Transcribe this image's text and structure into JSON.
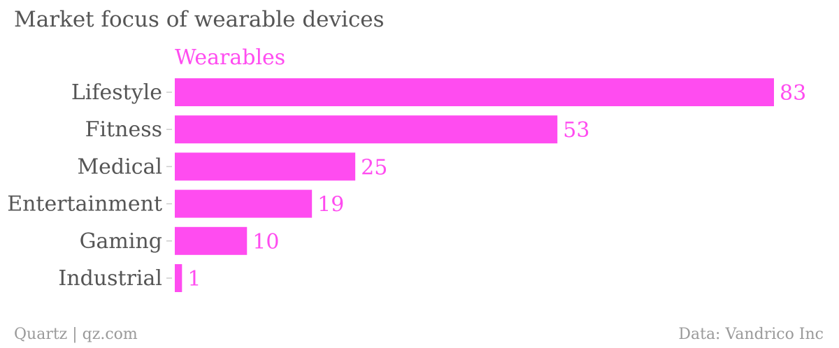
{
  "title": "Market focus of wearable devices",
  "footer": {
    "source": "Quartz | qz.com",
    "credit": "Data: Vandrico Inc"
  },
  "colors": {
    "bar": "#ff4cf0",
    "text": "#555555",
    "footer": "#9a9a9a"
  },
  "chart_data": {
    "type": "bar",
    "orientation": "horizontal",
    "categories": [
      "Lifestyle",
      "Fitness",
      "Medical",
      "Entertainment",
      "Gaming",
      "Industrial"
    ],
    "series": [
      {
        "name": "Wearables",
        "values": [
          83,
          53,
          25,
          19,
          10,
          1
        ]
      }
    ],
    "xlim": [
      0,
      83
    ],
    "data_labels": true,
    "grid": false,
    "legend": "top-left"
  }
}
